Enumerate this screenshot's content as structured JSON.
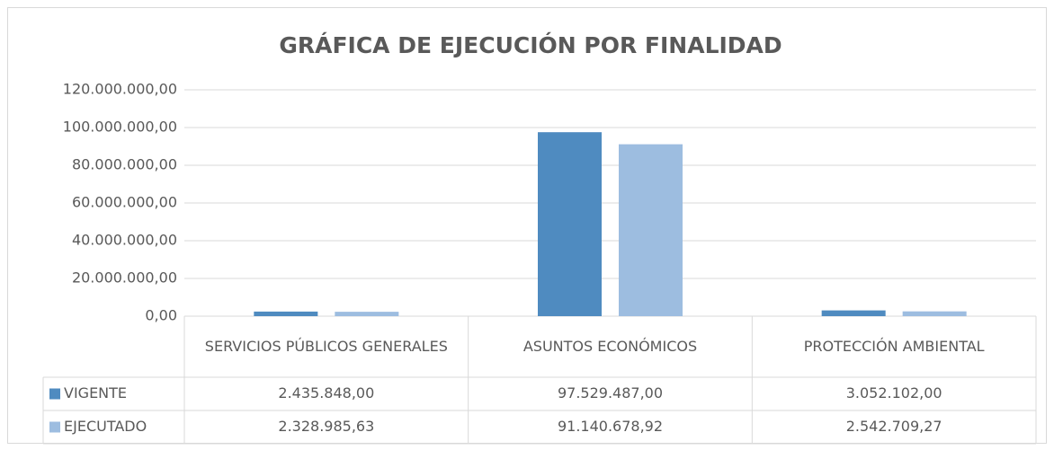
{
  "chart_data": {
    "type": "bar",
    "title": "GRÁFICA DE EJECUCIÓN POR FINALIDAD",
    "categories": [
      "SERVICIOS PÚBLICOS GENERALES",
      "ASUNTOS ECONÓMICOS",
      "PROTECCIÓN AMBIENTAL"
    ],
    "series": [
      {
        "name": "VIGENTE",
        "color": "#4f8bc0",
        "values": [
          2435848,
          97529487,
          3052102
        ],
        "value_labels": [
          "2.435.848,00",
          "97.529.487,00",
          "3.052.102,00"
        ]
      },
      {
        "name": "EJECUTADO",
        "color": "#9dbde0",
        "values": [
          2328985.63,
          91140678.92,
          2542709.27
        ],
        "value_labels": [
          "2.328.985,63",
          "91.140.678,92",
          "2.542.709,27"
        ]
      }
    ],
    "ylim": [
      0,
      120000000
    ],
    "yticks": [
      {
        "value": 0,
        "label": "0,00"
      },
      {
        "value": 20000000,
        "label": "20.000.000,00"
      },
      {
        "value": 40000000,
        "label": "40.000.000,00"
      },
      {
        "value": 60000000,
        "label": "60.000.000,00"
      },
      {
        "value": 80000000,
        "label": "80.000.000,00"
      },
      {
        "value": 100000000,
        "label": "100.000.000,00"
      },
      {
        "value": 120000000,
        "label": "120.000.000,00"
      }
    ],
    "grid": true
  }
}
